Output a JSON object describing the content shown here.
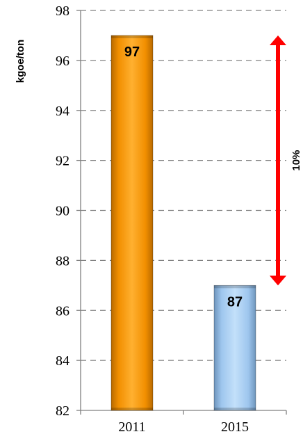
{
  "chart_data": {
    "type": "bar",
    "categories": [
      "2011",
      "2015"
    ],
    "values": [
      97,
      87
    ],
    "data_labels": [
      "97",
      "87"
    ],
    "title": "",
    "xlabel": "",
    "ylabel": "kgoe/ton",
    "ylim": [
      82,
      98
    ],
    "yticks": [
      82,
      84,
      86,
      88,
      90,
      92,
      94,
      96,
      98
    ],
    "grid": true,
    "bar_colors": [
      "#F59A00",
      "#A8CFF2"
    ],
    "annotation": {
      "text": "10%",
      "color": "#FF0000",
      "from_value": 97,
      "to_value": 87,
      "shape": "double-arrow"
    }
  }
}
